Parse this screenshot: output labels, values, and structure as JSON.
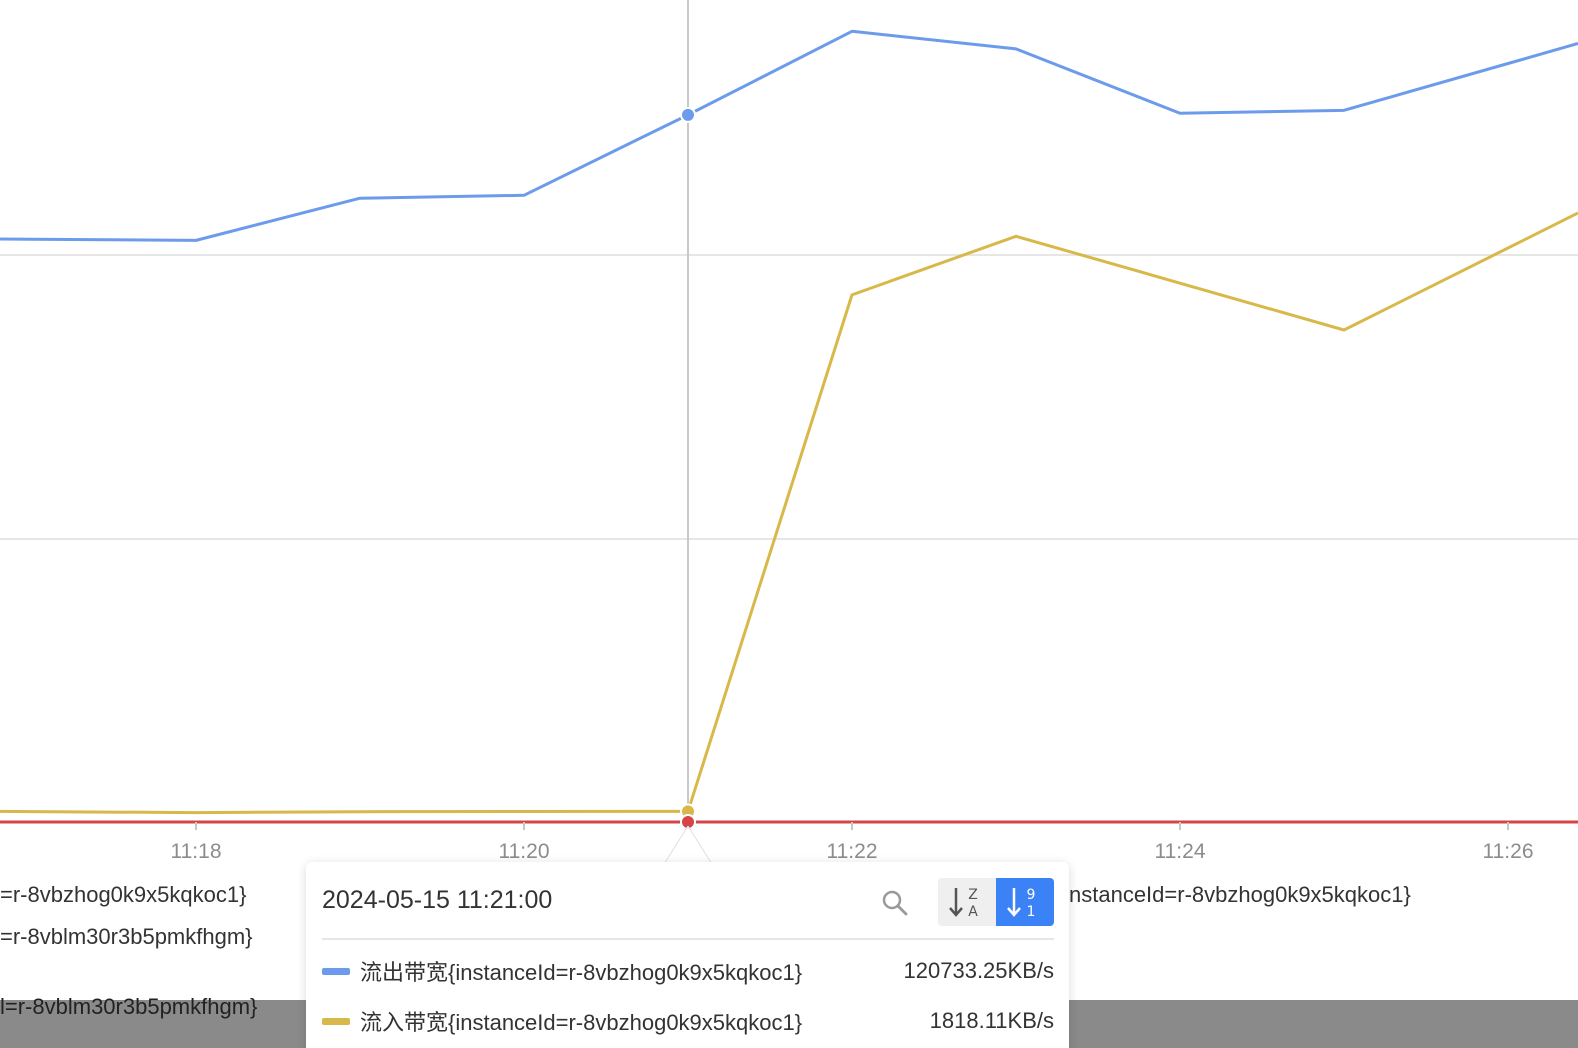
{
  "chart_data": {
    "type": "line",
    "x": [
      "11:17",
      "11:18",
      "11:19",
      "11:20",
      "11:21",
      "11:22",
      "11:23",
      "11:24",
      "11:25",
      "11:26"
    ],
    "x_tick_labels": [
      "11:18",
      "11:20",
      "11:22",
      "11:24",
      "11:26"
    ],
    "series": [
      {
        "name": "流出带宽{instanceId=r-8vbzhog0k9x5kqkoc1}",
        "color": "#6b9bea",
        "values": [
          99500,
          99300,
          106500,
          107000,
          120733.25,
          135000,
          132000,
          121000,
          121500,
          129500
        ]
      },
      {
        "name": "流入带宽{instanceId=r-8vbzhog0k9x5kqkoc1}",
        "color": "#d9b84a",
        "values": [
          1780,
          1600,
          1760,
          1800,
          1818.11,
          90000,
          100000,
          92000,
          84000,
          98000
        ]
      },
      {
        "name": "r-8vblm30r3b5pmkfhgm",
        "color": "#d64545",
        "values": [
          0,
          0,
          0,
          0,
          0,
          0,
          0,
          0,
          0,
          0
        ]
      }
    ],
    "grid": true,
    "hover_x": "11:21"
  },
  "legend_fragments": [
    "=r-8vbzhog0k9x5kqkoc1}",
    "=r-8vblm30r3b5pmkfhgm}",
    "nstanceId=r-8vbzhog0k9x5kqkoc1}",
    "l=r-8vblm30r3b5pmkfhgm}"
  ],
  "tooltip": {
    "time": "2024-05-15 11:21:00",
    "rows": [
      {
        "name": "流出带宽{instanceId=r-8vbzhog0k9x5kqkoc1}",
        "value": "120733.25KB/s",
        "color": "#6b9bea"
      },
      {
        "name": "流入带宽{instanceId=r-8vbzhog0k9x5kqkoc1}",
        "value": "1818.11KB/s",
        "color": "#d9b84a"
      }
    ],
    "search_icon": "search-icon",
    "sort_alpha_icon": "sort-alpha-desc-icon",
    "sort_num_icon": "sort-numeric-desc-icon"
  }
}
